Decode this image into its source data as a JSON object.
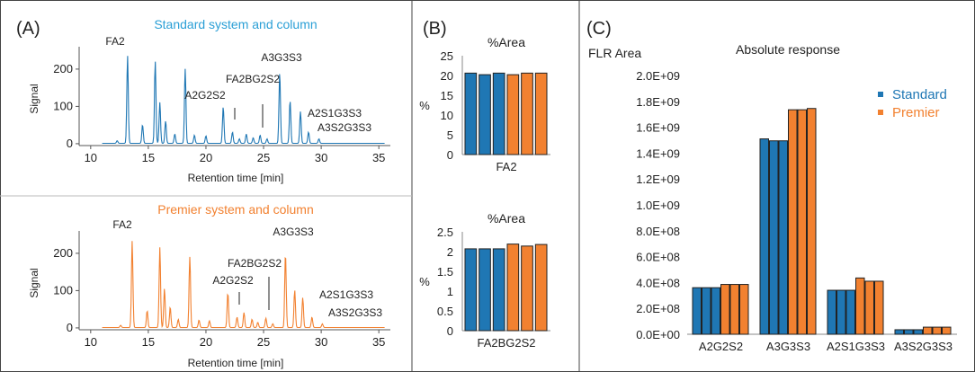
{
  "panels": {
    "a": {
      "letter": "(A)",
      "top": {
        "title": "Standard system and column",
        "ylabel": "Signal",
        "xlabel": "Retention time [min]",
        "peak_labels": [
          "FA2",
          "A3G3S3",
          "FA2BG2S2",
          "A2G2S2",
          "A2S1G3S3",
          "A3S2G3S3"
        ]
      },
      "bottom": {
        "title": "Premier system and column",
        "ylabel": "Signal",
        "xlabel": "Retention time [min]",
        "peak_labels": [
          "FA2",
          "A3G3S3",
          "FA2BG2S2",
          "A2G2S2",
          "A2S1G3S3",
          "A3S2G3S3"
        ]
      }
    },
    "b": {
      "letter": "(B)"
    },
    "c": {
      "letter": "(C)"
    }
  },
  "colors": {
    "standard": "#1f77b4",
    "premier": "#f28130",
    "title_blue": "#2a9fd6",
    "title_orange": "#f28130"
  },
  "chart_data": [
    {
      "type": "line",
      "title": "Standard system and column",
      "xlabel": "Retention time [min]",
      "ylabel": "Signal",
      "xlim": [
        9,
        36
      ],
      "ylim": [
        -5,
        260
      ],
      "xticks": [
        10,
        15,
        20,
        25,
        30,
        35
      ],
      "yticks": [
        0,
        100,
        200
      ],
      "peaks": [
        {
          "x": 12.3,
          "y": 7
        },
        {
          "x": 13.2,
          "y": 235
        },
        {
          "x": 14.5,
          "y": 50
        },
        {
          "x": 15.6,
          "y": 220
        },
        {
          "x": 16.0,
          "y": 110
        },
        {
          "x": 16.5,
          "y": 60
        },
        {
          "x": 17.3,
          "y": 25
        },
        {
          "x": 18.2,
          "y": 200
        },
        {
          "x": 19.0,
          "y": 22
        },
        {
          "x": 20.0,
          "y": 20
        },
        {
          "x": 21.5,
          "y": 98
        },
        {
          "x": 22.3,
          "y": 30
        },
        {
          "x": 22.9,
          "y": 12
        },
        {
          "x": 23.5,
          "y": 25
        },
        {
          "x": 24.1,
          "y": 15
        },
        {
          "x": 24.7,
          "y": 22
        },
        {
          "x": 25.3,
          "y": 12
        },
        {
          "x": 26.4,
          "y": 190
        },
        {
          "x": 27.3,
          "y": 115
        },
        {
          "x": 28.2,
          "y": 85
        },
        {
          "x": 28.9,
          "y": 30
        },
        {
          "x": 29.8,
          "y": 12
        }
      ],
      "annotations": [
        "FA2",
        "A3G3S3",
        "FA2BG2S2",
        "A2G2S2",
        "A2S1G3S3",
        "A3S2G3S3"
      ]
    },
    {
      "type": "line",
      "title": "Premier system and column",
      "xlabel": "Retention time [min]",
      "ylabel": "Signal",
      "xlim": [
        9,
        36
      ],
      "ylim": [
        -5,
        260
      ],
      "xticks": [
        10,
        15,
        20,
        25,
        30,
        35
      ],
      "yticks": [
        0,
        100,
        200
      ],
      "peaks": [
        {
          "x": 12.6,
          "y": 6
        },
        {
          "x": 13.6,
          "y": 232
        },
        {
          "x": 14.9,
          "y": 45
        },
        {
          "x": 16.0,
          "y": 215
        },
        {
          "x": 16.4,
          "y": 105
        },
        {
          "x": 16.9,
          "y": 55
        },
        {
          "x": 17.6,
          "y": 22
        },
        {
          "x": 18.6,
          "y": 190
        },
        {
          "x": 19.4,
          "y": 20
        },
        {
          "x": 20.3,
          "y": 18
        },
        {
          "x": 21.9,
          "y": 93
        },
        {
          "x": 22.7,
          "y": 28
        },
        {
          "x": 23.3,
          "y": 40
        },
        {
          "x": 24.0,
          "y": 22
        },
        {
          "x": 24.5,
          "y": 14
        },
        {
          "x": 25.2,
          "y": 25
        },
        {
          "x": 25.8,
          "y": 10
        },
        {
          "x": 26.9,
          "y": 200
        },
        {
          "x": 27.7,
          "y": 100
        },
        {
          "x": 28.4,
          "y": 80
        },
        {
          "x": 29.2,
          "y": 28
        },
        {
          "x": 30.1,
          "y": 10
        }
      ],
      "annotations": [
        "FA2",
        "A3G3S3",
        "FA2BG2S2",
        "A2G2S2",
        "A2S1G3S3",
        "A3S2G3S3"
      ]
    },
    {
      "type": "bar",
      "title": "%Area",
      "ylabel": "%",
      "xlabel": "FA2",
      "ylim": [
        0,
        25
      ],
      "yticks": [
        0,
        5,
        10,
        15,
        20,
        25
      ],
      "series": [
        {
          "name": "Standard",
          "values": [
            20.6,
            20.2,
            20.6
          ]
        },
        {
          "name": "Premier",
          "values": [
            20.2,
            20.6,
            20.6
          ]
        }
      ]
    },
    {
      "type": "bar",
      "title": "%Area",
      "ylabel": "%",
      "xlabel": "FA2BG2S2",
      "ylim": [
        0,
        2.5
      ],
      "yticks": [
        0,
        0.5,
        1,
        1.5,
        2,
        2.5
      ],
      "series": [
        {
          "name": "Standard",
          "values": [
            2.07,
            2.07,
            2.07
          ]
        },
        {
          "name": "Premier",
          "values": [
            2.19,
            2.14,
            2.18
          ]
        }
      ]
    },
    {
      "type": "bar",
      "title": "Absolute response",
      "ylabel": "FLR Area",
      "ylim": [
        0,
        2000000000
      ],
      "ytick_labels": [
        "0.0E+00",
        "2.0E+08",
        "4.0E+08",
        "6.0E+08",
        "8.0E+08",
        "1.0E+09",
        "1.2E+09",
        "1.4E+09",
        "1.6E+09",
        "1.8E+09",
        "2.0E+09"
      ],
      "categories": [
        "A2G2S2",
        "A3G3S3",
        "A2S1G3S3",
        "A3S2G3S3"
      ],
      "series": [
        {
          "name": "Standard",
          "values": [
            [
              360000000,
              360000000,
              360000000
            ],
            [
              1510000000,
              1495000000,
              1495000000
            ],
            [
              340000000,
              340000000,
              340000000
            ],
            [
              35000000,
              35000000,
              35000000
            ]
          ]
        },
        {
          "name": "Premier",
          "values": [
            [
              385000000,
              385000000,
              385000000
            ],
            [
              1735000000,
              1735000000,
              1745000000
            ],
            [
              435000000,
              410000000,
              410000000
            ],
            [
              55000000,
              55000000,
              55000000
            ]
          ]
        }
      ],
      "legend": "top-right"
    }
  ]
}
